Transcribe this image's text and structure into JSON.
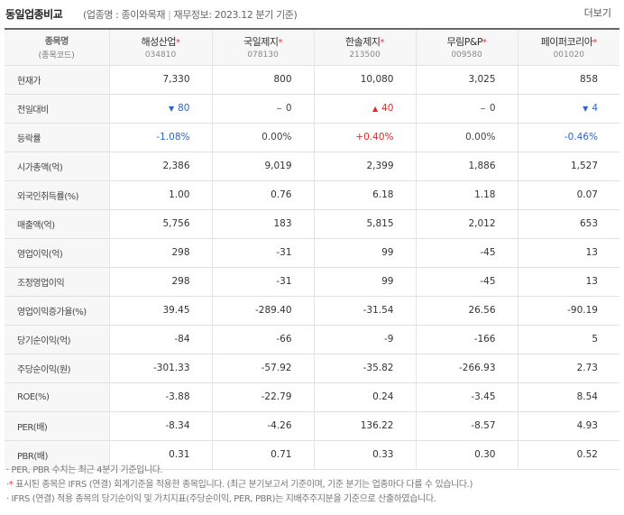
{
  "header": {
    "title": "동일업종비교",
    "industry_label": "(업종명 : 종이와목재",
    "finance_label": "재무정보: 2023.12 분기 기준)",
    "more_label": "더보기"
  },
  "table": {
    "corner_name": "종목명",
    "corner_code": "(종목코드)",
    "star": "*",
    "companies": [
      {
        "name": "해성산업",
        "code": "034810"
      },
      {
        "name": "국일제지",
        "code": "078130"
      },
      {
        "name": "한솔제지",
        "code": "213500"
      },
      {
        "name": "무림P&P",
        "code": "009580"
      },
      {
        "name": "페이퍼코리아",
        "code": "001020"
      }
    ],
    "rows": [
      {
        "label": "현재가",
        "values": [
          "7,330",
          "800",
          "10,080",
          "3,025",
          "858"
        ]
      },
      {
        "label": "전일대비",
        "values": [
          "80",
          "0",
          "40",
          "0",
          "4"
        ],
        "dir": [
          "down",
          "flat",
          "up",
          "flat",
          "down"
        ]
      },
      {
        "label": "등락률",
        "values": [
          "-1.08%",
          "0.00%",
          "+0.40%",
          "0.00%",
          "-0.46%"
        ],
        "dir": [
          "down",
          "flat",
          "up",
          "flat",
          "down"
        ]
      },
      {
        "label": "시가총액(억)",
        "values": [
          "2,386",
          "9,019",
          "2,399",
          "1,886",
          "1,527"
        ]
      },
      {
        "label": "외국인취득률(%)",
        "values": [
          "1.00",
          "0.76",
          "6.18",
          "1.18",
          "0.07"
        ]
      },
      {
        "label": "매출액(억)",
        "values": [
          "5,756",
          "183",
          "5,815",
          "2,012",
          "653"
        ]
      },
      {
        "label": "영업이익(억)",
        "values": [
          "298",
          "-31",
          "99",
          "-45",
          "13"
        ]
      },
      {
        "label": "조정영업이익",
        "values": [
          "298",
          "-31",
          "99",
          "-45",
          "13"
        ]
      },
      {
        "label": "영업이익증가율(%)",
        "values": [
          "39.45",
          "-289.40",
          "-31.54",
          "26.56",
          "-90.19"
        ]
      },
      {
        "label": "당기순이익(억)",
        "values": [
          "-84",
          "-66",
          "-9",
          "-166",
          "5"
        ]
      },
      {
        "label": "주당순이익(원)",
        "values": [
          "-301.33",
          "-57.92",
          "-35.82",
          "-266.93",
          "2.73"
        ]
      },
      {
        "label": "ROE(%)",
        "values": [
          "-3.88",
          "-22.79",
          "0.24",
          "-3.45",
          "8.54"
        ]
      },
      {
        "label": "PER(배)",
        "values": [
          "-8.34",
          "-4.26",
          "136.22",
          "-8.57",
          "4.93"
        ]
      },
      {
        "label": "PBR(배)",
        "values": [
          "0.31",
          "0.71",
          "0.33",
          "0.30",
          "0.52"
        ]
      }
    ]
  },
  "arrows": {
    "down": "▼",
    "up": "▲",
    "flat": "−"
  },
  "notes": [
    "· PER, PBR 수치는 최근 4분기 기준입니다.",
    "표시된 종목은 IFRS (연결) 회계기준을 적용한 종목입니다. (최근 분기보고서 기준이며, 기준 분기는 업종마다 다를 수 있습니다.)",
    "· IFRS (연결) 적용 종목의 당기순이익 및 가치지표(주당순이익, PER, PBR)는 지배주주지분을 기준으로 산출하였습니다."
  ],
  "note_prefix": "·",
  "colors": {
    "down": "#2e64c8",
    "up": "#ee2222",
    "star": "#ee3333"
  }
}
